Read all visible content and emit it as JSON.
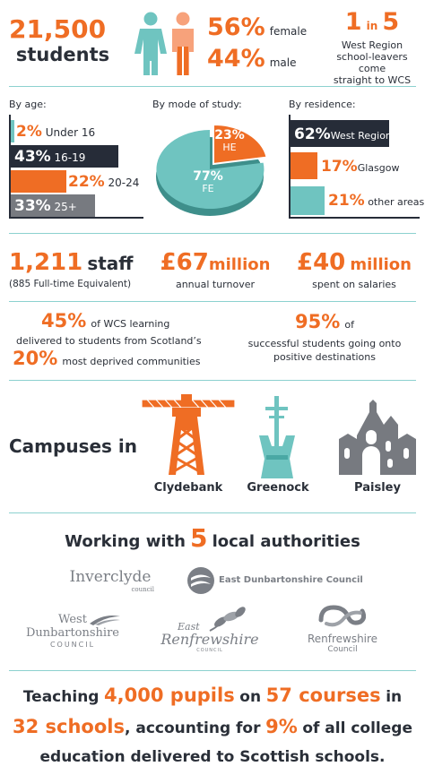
{
  "students": {
    "count": "21,500",
    "label": "students"
  },
  "gender": {
    "female_pct": "56%",
    "female_label": "female",
    "male_pct": "44%",
    "male_label": "male"
  },
  "wcs": {
    "one": "1",
    "in": "in",
    "five": "5",
    "line1": "West Region",
    "line2": "school-leavers come",
    "line3": "straight to WCS"
  },
  "age": {
    "heading": "By age:",
    "items": [
      {
        "pct": "2%",
        "label": "Under 16",
        "value": 2
      },
      {
        "pct": "43%",
        "label": "16-19",
        "value": 43
      },
      {
        "pct": "22%",
        "label": "20-24",
        "value": 22
      },
      {
        "pct": "33%",
        "label": "25+",
        "value": 33
      }
    ]
  },
  "mode": {
    "heading": "By mode of study:",
    "he_pct": "23%",
    "he_label": "HE",
    "he_value": 23,
    "fe_pct": "77%",
    "fe_label": "FE",
    "fe_value": 77
  },
  "residence": {
    "heading": "By residence:",
    "items": [
      {
        "pct": "62%",
        "label": "West Region",
        "value": 62
      },
      {
        "pct": "17%",
        "label": "Glasgow",
        "value": 17
      },
      {
        "pct": "21%",
        "label": "other areas",
        "value": 21
      }
    ]
  },
  "staff": {
    "count": "1,211",
    "word": "staff",
    "sub": "(885 Full-time Equivalent)"
  },
  "turnover": {
    "amount": "£67",
    "unit": "million",
    "sub": "annual turnover"
  },
  "salaries": {
    "amount": "£40",
    "unit": "million",
    "sub": "spent on salaries"
  },
  "deprived": {
    "pct1": "45%",
    "text1": "of WCS learning",
    "text2": "delivered to students from Scotland’s",
    "pct2": "20%",
    "text3": "most deprived communities"
  },
  "positive": {
    "pct": "95%",
    "text1": "of",
    "text2": "successful students going onto",
    "text3": "positive destinations"
  },
  "campuses": {
    "heading": "Campuses in",
    "items": [
      "Clydebank",
      "Greenock",
      "Paisley"
    ]
  },
  "authorities": {
    "pre": "Working with",
    "num": "5",
    "post": "local authorities",
    "logos": {
      "inverclyde": "Inverclyde",
      "inverclyde_sub": "council",
      "eastdun": "East Dunbartonshire Council",
      "westdun1": "West",
      "westdun2": "Dunbartonshire",
      "westdun3": "COUNCIL",
      "eastren1": "East",
      "eastren2": "Renfrewshire",
      "eastren3": "COUNCIL",
      "ren1": "Renfrewshire",
      "ren2": "Council"
    }
  },
  "teaching": {
    "l1a": "Teaching",
    "l1b": "4,000 pupils",
    "l1c": "on",
    "l1d": "57 courses",
    "l1e": "in",
    "l2a": "32 schools",
    "l2b": ", accounting for",
    "l2c": "9%",
    "l2d": "of all college",
    "l3": "education delivered to Scottish schools."
  },
  "colors": {
    "orange": "#ef6d24",
    "teal": "#6fc4c0",
    "navy": "#262c38",
    "grey": "#777a80"
  }
}
